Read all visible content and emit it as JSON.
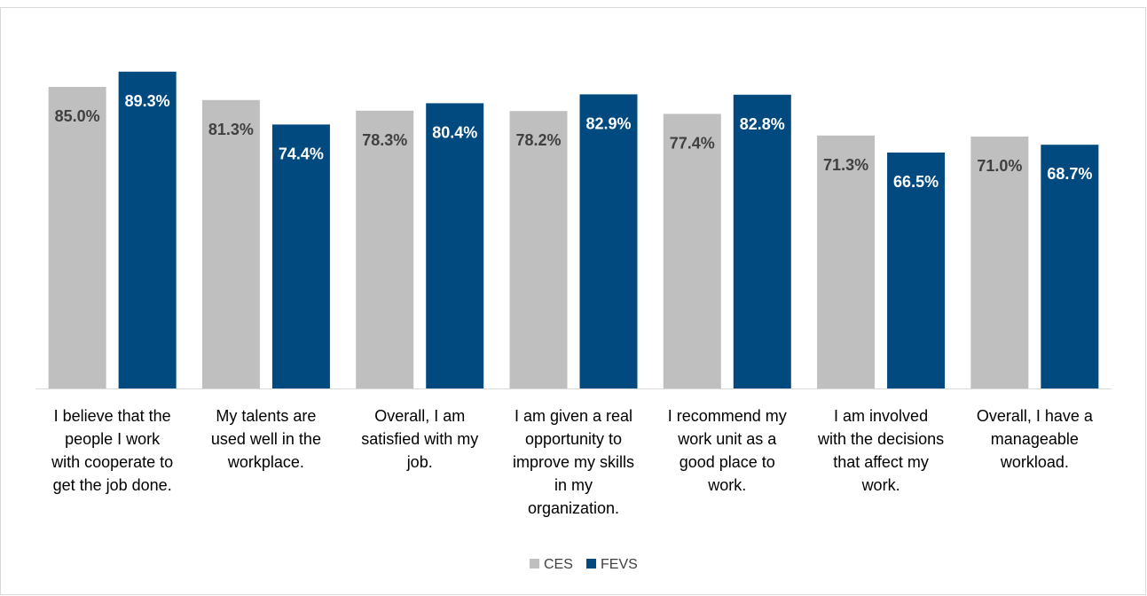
{
  "chart_data": {
    "type": "bar",
    "title": "",
    "xlabel": "",
    "ylabel": "",
    "ylim": [
      0,
      100
    ],
    "grid": false,
    "legend_position": "bottom",
    "categories": [
      [
        "I believe that the",
        "people I work",
        "with cooperate to",
        "get the job done."
      ],
      [
        "My talents are",
        "used well in the",
        "workplace."
      ],
      [
        "Overall, I am",
        "satisfied with my",
        "job."
      ],
      [
        "I am given a real",
        "opportunity to",
        "improve my skills",
        "in my",
        "organization."
      ],
      [
        "I recommend my",
        "work unit as a",
        "good place to",
        "work."
      ],
      [
        "I am involved",
        "with the decisions",
        "that affect my",
        "work."
      ],
      [
        "Overall, I have a",
        "manageable",
        "workload."
      ]
    ],
    "series": [
      {
        "name": "CES",
        "color": "#bfbfbf",
        "label_color": "#404040",
        "values": [
          85.0,
          81.3,
          78.3,
          78.2,
          77.4,
          71.3,
          71.0
        ],
        "labels": [
          "85.0%",
          "81.3%",
          "78.3%",
          "78.2%",
          "77.4%",
          "71.3%",
          "71.0%"
        ]
      },
      {
        "name": "FEVS",
        "color": "#004a80",
        "label_color": "#ffffff",
        "values": [
          89.3,
          74.4,
          80.4,
          82.9,
          82.8,
          66.5,
          68.7
        ],
        "labels": [
          "89.3%",
          "74.4%",
          "80.4%",
          "82.9%",
          "82.8%",
          "66.5%",
          "68.7%"
        ]
      }
    ]
  }
}
